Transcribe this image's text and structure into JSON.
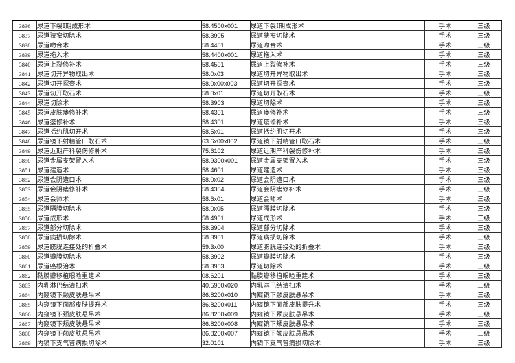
{
  "page": {
    "background": "#ffffff",
    "text_color": "#141414",
    "border_color": "#2f2f2f"
  },
  "table": {
    "rows": [
      {
        "no": "3836",
        "name": "尿道下裂Ⅰ期成形术",
        "code": "58.4500x001",
        "std_name": "尿道下裂Ⅰ期成形术",
        "category": "手术",
        "level": "三级"
      },
      {
        "no": "3837",
        "name": "尿道狭窄切除术",
        "code": "58.3905",
        "std_name": "尿道狭窄切除术",
        "category": "手术",
        "level": "三级"
      },
      {
        "no": "3838",
        "name": "尿道吻合术",
        "code": "58.4401",
        "std_name": "尿道吻合术",
        "category": "手术",
        "level": "三级"
      },
      {
        "no": "3839",
        "name": "尿道拖入术",
        "code": "58.4400x001",
        "std_name": "尿道拖入术",
        "category": "手术",
        "level": "三级"
      },
      {
        "no": "3840",
        "name": "尿道上裂修补术",
        "code": "58.4501",
        "std_name": "尿道上裂修补术",
        "category": "手术",
        "level": "三级"
      },
      {
        "no": "3841",
        "name": "尿道切开异物取出术",
        "code": "58.0x03",
        "std_name": "尿道切开异物取出术",
        "category": "手术",
        "level": "三级"
      },
      {
        "no": "3842",
        "name": "尿道切开探查术",
        "code": "58.0x00x003",
        "std_name": "尿道切开探查术",
        "category": "手术",
        "level": "三级"
      },
      {
        "no": "3843",
        "name": "尿道切开取石术",
        "code": "58.0x01",
        "std_name": "尿道切开取石术",
        "category": "手术",
        "level": "三级"
      },
      {
        "no": "3844",
        "name": "尿道切除术",
        "code": "58.3903",
        "std_name": "尿道切除术",
        "category": "手术",
        "level": "三级"
      },
      {
        "no": "3845",
        "name": "尿道皮肤瘘修补术",
        "code": "58.4301",
        "std_name": "尿道瘘修补术",
        "category": "手术",
        "level": "三级"
      },
      {
        "no": "3846",
        "name": "尿道瘘修补术",
        "code": "58.4301",
        "std_name": "尿道瘘修补术",
        "category": "手术",
        "level": "三级"
      },
      {
        "no": "3847",
        "name": "尿道括约肌切开术",
        "code": "58.5x01",
        "std_name": "尿道括约肌切开术",
        "category": "手术",
        "level": "三级"
      },
      {
        "no": "3848",
        "name": "尿道镜下射精管口取石术",
        "code": "63.6x00x002",
        "std_name": "尿道镜下射精管口取石术",
        "category": "手术",
        "level": "三级"
      },
      {
        "no": "3849",
        "name": "尿道近期产科裂伤修补术",
        "code": "75.6102",
        "std_name": "尿道近期产科裂伤修补术",
        "category": "手术",
        "level": "三级"
      },
      {
        "no": "3850",
        "name": "尿道金属支架置入术",
        "code": "58.9300x001",
        "std_name": "尿道金属支架置入术",
        "category": "手术",
        "level": "三级"
      },
      {
        "no": "3851",
        "name": "尿道建造术",
        "code": "58.4601",
        "std_name": "尿道建造术",
        "category": "手术",
        "level": "三级"
      },
      {
        "no": "3852",
        "name": "尿道会阴造口术",
        "code": "58.0x02",
        "std_name": "尿道会阴造口术",
        "category": "手术",
        "level": "三级"
      },
      {
        "no": "3853",
        "name": "尿道会阴瘘修补术",
        "code": "58.4304",
        "std_name": "尿道会阴瘘修补术",
        "category": "手术",
        "level": "三级"
      },
      {
        "no": "3854",
        "name": "尿道会师术",
        "code": "58.6x01",
        "std_name": "尿道会师术",
        "category": "手术",
        "level": "三级"
      },
      {
        "no": "3855",
        "name": "尿道隔膜切除术",
        "code": "58.0x05",
        "std_name": "尿道隔膜切除术",
        "category": "手术",
        "level": "三级"
      },
      {
        "no": "3856",
        "name": "尿道成形术",
        "code": "58.4901",
        "std_name": "尿道成形术",
        "category": "手术",
        "level": "三级"
      },
      {
        "no": "3857",
        "name": "尿道部分切除术",
        "code": "58.3904",
        "std_name": "尿道部分切除术",
        "category": "手术",
        "level": "三级"
      },
      {
        "no": "3858",
        "name": "尿道病损切除术",
        "code": "58.3901",
        "std_name": "尿道病损切除术",
        "category": "手术",
        "level": "三级"
      },
      {
        "no": "3859",
        "name": "尿道膀胱连接处的折叠术",
        "code": "59.3x00",
        "std_name": "尿道膀胱连接处的折叠术",
        "category": "手术",
        "level": "三级"
      },
      {
        "no": "3860",
        "name": "尿道瓣膜切除术",
        "code": "58.3902",
        "std_name": "尿道瓣膜切除术",
        "category": "手术",
        "level": "三级"
      },
      {
        "no": "3861",
        "name": "尿道癌根治术",
        "code": "58.3903",
        "std_name": "尿道切除术",
        "category": "手术",
        "level": "三级"
      },
      {
        "no": "3862",
        "name": "黏膜瓣移植眼睑重建术",
        "code": "08.6201",
        "std_name": "黏膜瓣移植眼睑重建术",
        "category": "手术",
        "level": "三级"
      },
      {
        "no": "3863",
        "name": "内乳淋巴结清扫术",
        "code": "40.5900x020",
        "std_name": "内乳淋巴结清扫术",
        "category": "手术",
        "level": "三级"
      },
      {
        "no": "3864",
        "name": "内窥镜下颞皮肤悬吊术",
        "code": "86.8200x010",
        "std_name": "内窥镜下颞皮肤悬吊术",
        "category": "手术",
        "level": "三级"
      },
      {
        "no": "3865",
        "name": "内窥镜下面部皮肤提升术",
        "code": "86.8200x011",
        "std_name": "内窥镜下面部皮肤提升术",
        "category": "手术",
        "level": "三级"
      },
      {
        "no": "3866",
        "name": "内窥镜下颈皮肤悬吊术",
        "code": "86.8200x009",
        "std_name": "内窥镜下颈皮肤悬吊术",
        "category": "手术",
        "level": "三级"
      },
      {
        "no": "3867",
        "name": "内窥镜下颊皮肤悬吊术",
        "code": "86.8200x008",
        "std_name": "内窥镜下颊皮肤悬吊术",
        "category": "手术",
        "level": "三级"
      },
      {
        "no": "3868",
        "name": "内窥镜下额皮肤悬吊术",
        "code": "86.8200x007",
        "std_name": "内窥镜下额皮肤悬吊术",
        "category": "手术",
        "level": "三级"
      },
      {
        "no": "3869",
        "name": "内镜下支气管病损切除术",
        "code": "32.0101",
        "std_name": "内镜下支气管病损切除术",
        "category": "手术",
        "level": "三级"
      }
    ]
  }
}
